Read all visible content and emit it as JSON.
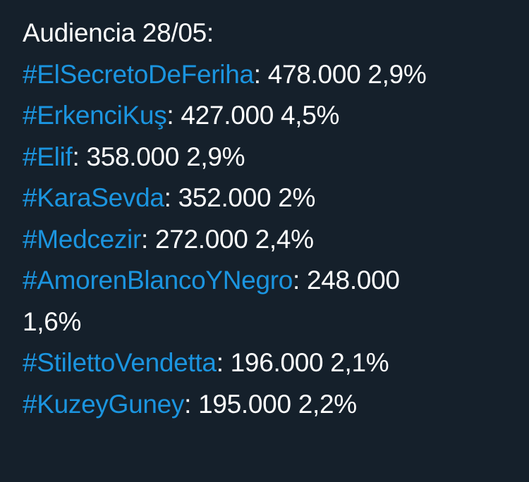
{
  "tweet": {
    "heading": "Audiencia 28/05:",
    "entries": [
      {
        "hashtag": "#ElSecretoDeFeriha",
        "value": ": 478.000 2,9%"
      },
      {
        "hashtag": "#ErkenciKuş",
        "value": ": 427.000 4,5%"
      },
      {
        "hashtag": "#Elif",
        "value": ": 358.000 2,9%"
      },
      {
        "hashtag": "#KaraSevda",
        "value": ": 352.000 2%"
      },
      {
        "hashtag": "#Medcezir",
        "value": ": 272.000 2,4%"
      },
      {
        "hashtag": "#AmorenBlancoYNegro",
        "value": ": 248.000",
        "value_wrap": "1,6%"
      },
      {
        "hashtag": "#StilettoVendetta",
        "value": ": 196.000 2,1%"
      },
      {
        "hashtag": "#KuzeyGuney",
        "value": ": 195.000 2,2%"
      }
    ]
  },
  "colors": {
    "background": "#15202b",
    "text": "#ffffff",
    "hashtag": "#1b95e0"
  }
}
